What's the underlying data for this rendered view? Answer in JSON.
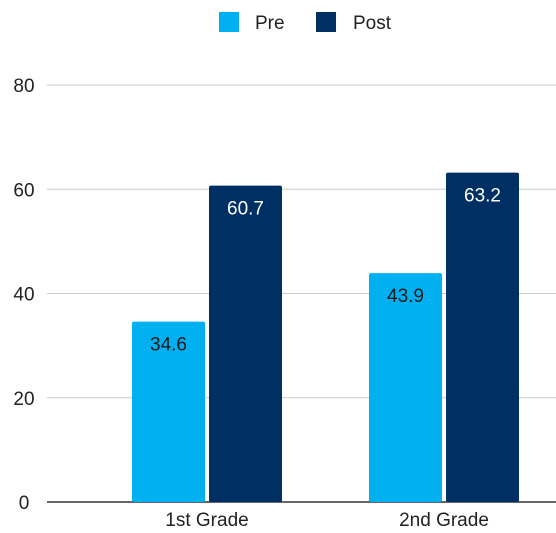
{
  "chart_data": {
    "type": "bar",
    "categories": [
      "1st Grade",
      "2nd Grade"
    ],
    "series": [
      {
        "name": "Pre",
        "values": [
          34.6,
          43.9
        ],
        "color": "#00b0f0",
        "label_color": "#1a1a1a"
      },
      {
        "name": "Post",
        "values": [
          60.7,
          63.2
        ],
        "color": "#002f63",
        "label_color": "#ffffff"
      }
    ],
    "data_labels": [
      [
        "34.6",
        "43.9"
      ],
      [
        "60.7",
        "63.2"
      ]
    ],
    "ylim": [
      0,
      80
    ],
    "yticks": [
      "0",
      "20",
      "40",
      "60",
      "80"
    ],
    "ytick_values": [
      0,
      20,
      40,
      60,
      80
    ],
    "grid": true,
    "legend_position": "top-center",
    "title": "",
    "xlabel": "",
    "ylabel": "",
    "gridline_color": "#cccccc",
    "axis_color": "#333333"
  }
}
